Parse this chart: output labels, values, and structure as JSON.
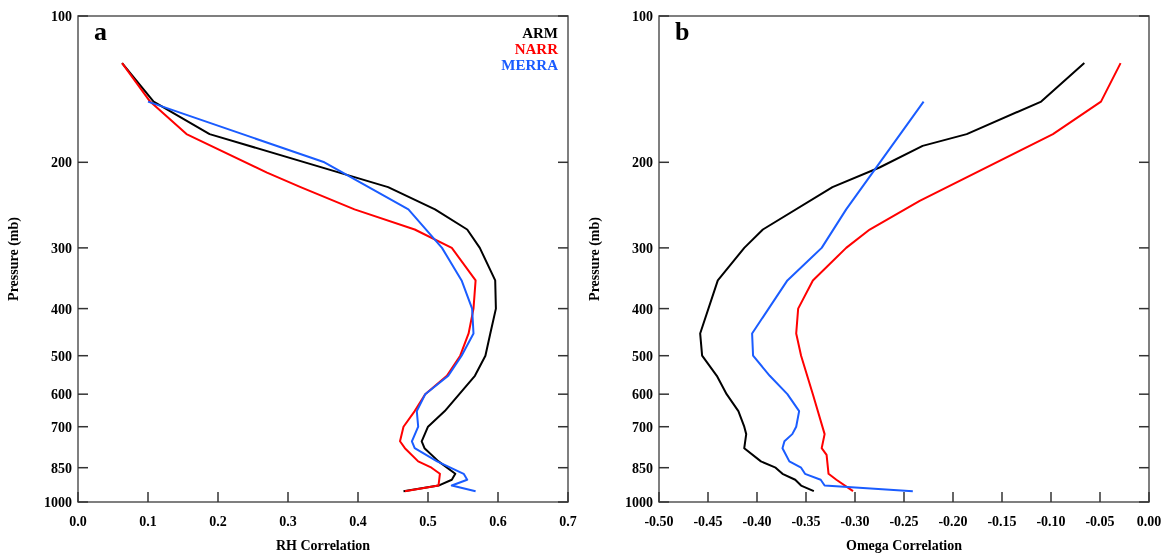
{
  "chart_data": [
    {
      "type": "line",
      "title": "a",
      "xlabel": "RH Correlation",
      "ylabel": "Pressure (mb)",
      "log": "y",
      "legend": "top right",
      "grid": false,
      "xlim": [
        0,
        0.7
      ],
      "xticks": [
        {
          "value": 0,
          "label": "0.0"
        },
        0.1,
        0.2,
        0.3,
        0.4,
        0.5,
        0.6,
        0.7
      ],
      "ylim": [
        1000,
        100
      ],
      "yticks": [
        100,
        200,
        300,
        400,
        500,
        600,
        700,
        850,
        1000
      ],
      "series": [
        {
          "name": "ARM",
          "color": "#000000",
          "x": [
            0.063,
            0.108,
            0.188,
            0.443,
            0.51,
            0.556,
            0.574,
            0.596,
            0.597,
            0.589,
            0.582,
            0.567,
            0.524,
            0.5,
            0.491,
            0.495,
            0.515,
            0.539,
            0.534,
            0.515,
            0.465
          ],
          "values": [
            125,
            150,
            175,
            225,
            250,
            275,
            300,
            350,
            400,
            450,
            500,
            550,
            650,
            700,
            750,
            775,
            825,
            875,
            900,
            925,
            950
          ]
        },
        {
          "name": "NARR",
          "color": "#ff0000",
          "x": [
            0.063,
            0.103,
            0.155,
            0.27,
            0.318,
            0.395,
            0.481,
            0.534,
            0.568,
            0.565,
            0.558,
            0.546,
            0.527,
            0.496,
            0.481,
            0.465,
            0.46,
            0.467,
            0.486,
            0.505,
            0.517,
            0.515,
            0.467
          ],
          "values": [
            125,
            150,
            175,
            210,
            225,
            250,
            275,
            300,
            350,
            400,
            450,
            500,
            550,
            600,
            650,
            700,
            750,
            775,
            825,
            850,
            875,
            925,
            950
          ]
        },
        {
          "name": "MERRA",
          "color": "#1a5cff",
          "x": [
            0.1,
            0.352,
            0.472,
            0.52,
            0.548,
            0.563,
            0.565,
            0.548,
            0.529,
            0.496,
            0.484,
            0.486,
            0.477,
            0.481,
            0.513,
            0.551,
            0.556,
            0.534,
            0.568
          ],
          "values": [
            150,
            200,
            250,
            300,
            350,
            400,
            450,
            500,
            550,
            600,
            650,
            700,
            750,
            775,
            825,
            875,
            900,
            925,
            950
          ]
        }
      ]
    },
    {
      "type": "line",
      "title": "b",
      "xlabel": "Omega Correlation",
      "ylabel": "Pressure (mb)",
      "log": "y",
      "grid": false,
      "xlim": [
        -0.5,
        0
      ],
      "xticks": [
        {
          "value": -0.5,
          "label": "-0.50"
        },
        -0.45,
        {
          "value": -0.4,
          "label": "-0.40"
        },
        -0.35,
        {
          "value": -0.3,
          "label": "-0.30"
        },
        -0.25,
        {
          "value": -0.2,
          "label": "-0.20"
        },
        -0.15,
        {
          "value": -0.1,
          "label": "-0.10"
        },
        -0.05,
        {
          "value": 0,
          "label": "0.00"
        }
      ],
      "ylim": [
        1000,
        100
      ],
      "yticks": [
        100,
        200,
        300,
        400,
        500,
        600,
        700,
        850,
        1000
      ],
      "series": [
        {
          "color": "#000000",
          "x": [
            -0.066,
            -0.11,
            -0.186,
            -0.231,
            -0.275,
            -0.323,
            -0.394,
            -0.413,
            -0.44,
            -0.458,
            -0.456,
            -0.441,
            -0.431,
            -0.419,
            -0.413,
            -0.411,
            -0.413,
            -0.396,
            -0.381,
            -0.374,
            -0.361,
            -0.355,
            -0.342
          ],
          "values": [
            125,
            150,
            175,
            185,
            205,
            225,
            275,
            300,
            350,
            450,
            500,
            550,
            600,
            650,
            700,
            725,
            775,
            825,
            850,
            875,
            900,
            925,
            950
          ]
        },
        {
          "color": "#ff0000",
          "x": [
            -0.029,
            -0.049,
            -0.098,
            -0.234,
            -0.285,
            -0.309,
            -0.343,
            -0.358,
            -0.36,
            -0.355,
            -0.343,
            -0.331,
            -0.334,
            -0.329,
            -0.327,
            -0.319,
            -0.302
          ],
          "values": [
            125,
            150,
            175,
            240,
            275,
            300,
            350,
            400,
            450,
            500,
            600,
            725,
            775,
            800,
            875,
            900,
            950
          ]
        },
        {
          "color": "#1a5cff",
          "x": [
            -0.23,
            -0.309,
            -0.334,
            -0.369,
            -0.405,
            -0.404,
            -0.387,
            -0.369,
            -0.357,
            -0.36,
            -0.364,
            -0.372,
            -0.374,
            -0.367,
            -0.355,
            -0.351,
            -0.335,
            -0.331,
            -0.241
          ],
          "values": [
            150,
            250,
            300,
            350,
            450,
            500,
            550,
            600,
            650,
            700,
            725,
            750,
            775,
            825,
            850,
            875,
            900,
            925,
            950
          ]
        }
      ]
    }
  ]
}
